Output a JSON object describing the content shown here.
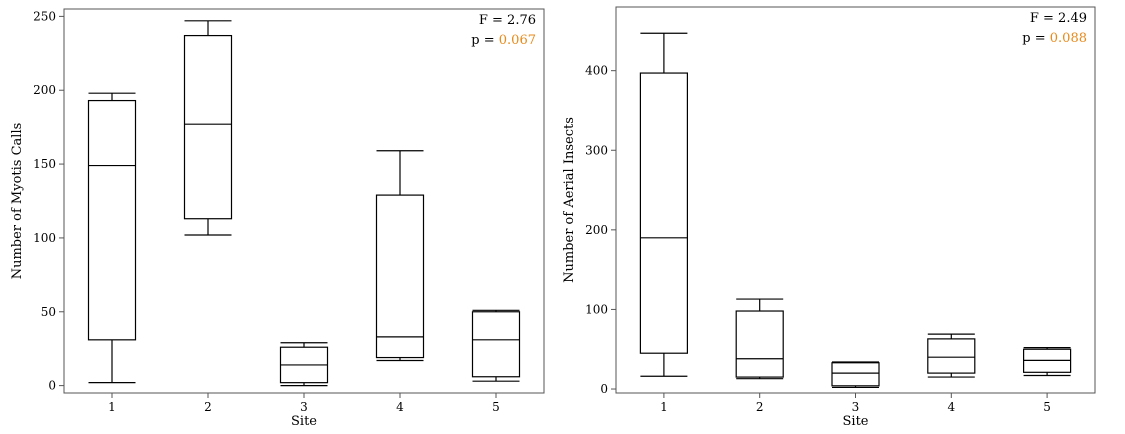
{
  "p_color": "#e88a1a",
  "chart_data": [
    {
      "type": "box",
      "xlabel": "Site",
      "ylabel": "Number of Myotis Calls",
      "categories": [
        "1",
        "2",
        "3",
        "4",
        "5"
      ],
      "yticks": [
        0,
        50,
        100,
        150,
        200,
        250
      ],
      "ylim": [
        -5,
        255
      ],
      "stats": {
        "f_label": "F = 2.76",
        "p_prefix": "p = ",
        "p_value": "0.067"
      },
      "boxes": [
        {
          "category": "1",
          "min": 2,
          "q1": 31,
          "median": 149,
          "q3": 193,
          "max": 198
        },
        {
          "category": "2",
          "min": 102,
          "q1": 113,
          "median": 177,
          "q3": 237,
          "max": 247
        },
        {
          "category": "3",
          "min": 0,
          "q1": 2,
          "median": 14,
          "q3": 26,
          "max": 29
        },
        {
          "category": "4",
          "min": 17,
          "q1": 19,
          "median": 33,
          "q3": 129,
          "max": 159
        },
        {
          "category": "5",
          "min": 3,
          "q1": 6,
          "median": 31,
          "q3": 50,
          "max": 51
        }
      ]
    },
    {
      "type": "box",
      "xlabel": "Site",
      "ylabel": "Number of Aerial Insects",
      "categories": [
        "1",
        "2",
        "3",
        "4",
        "5"
      ],
      "yticks": [
        0,
        100,
        200,
        300,
        400
      ],
      "ylim": [
        -5,
        480
      ],
      "stats": {
        "f_label": "F = 2.49",
        "p_prefix": "p = ",
        "p_value": "0.088"
      },
      "boxes": [
        {
          "category": "1",
          "min": 16,
          "q1": 45,
          "median": 190,
          "q3": 397,
          "max": 447
        },
        {
          "category": "2",
          "min": 13,
          "q1": 15,
          "median": 38,
          "q3": 98,
          "max": 113
        },
        {
          "category": "3",
          "min": 2,
          "q1": 4,
          "median": 20,
          "q3": 33,
          "max": 34
        },
        {
          "category": "4",
          "min": 15,
          "q1": 20,
          "median": 40,
          "q3": 63,
          "max": 69
        },
        {
          "category": "5",
          "min": 17,
          "q1": 21,
          "median": 36,
          "q3": 50,
          "max": 52
        }
      ]
    }
  ]
}
